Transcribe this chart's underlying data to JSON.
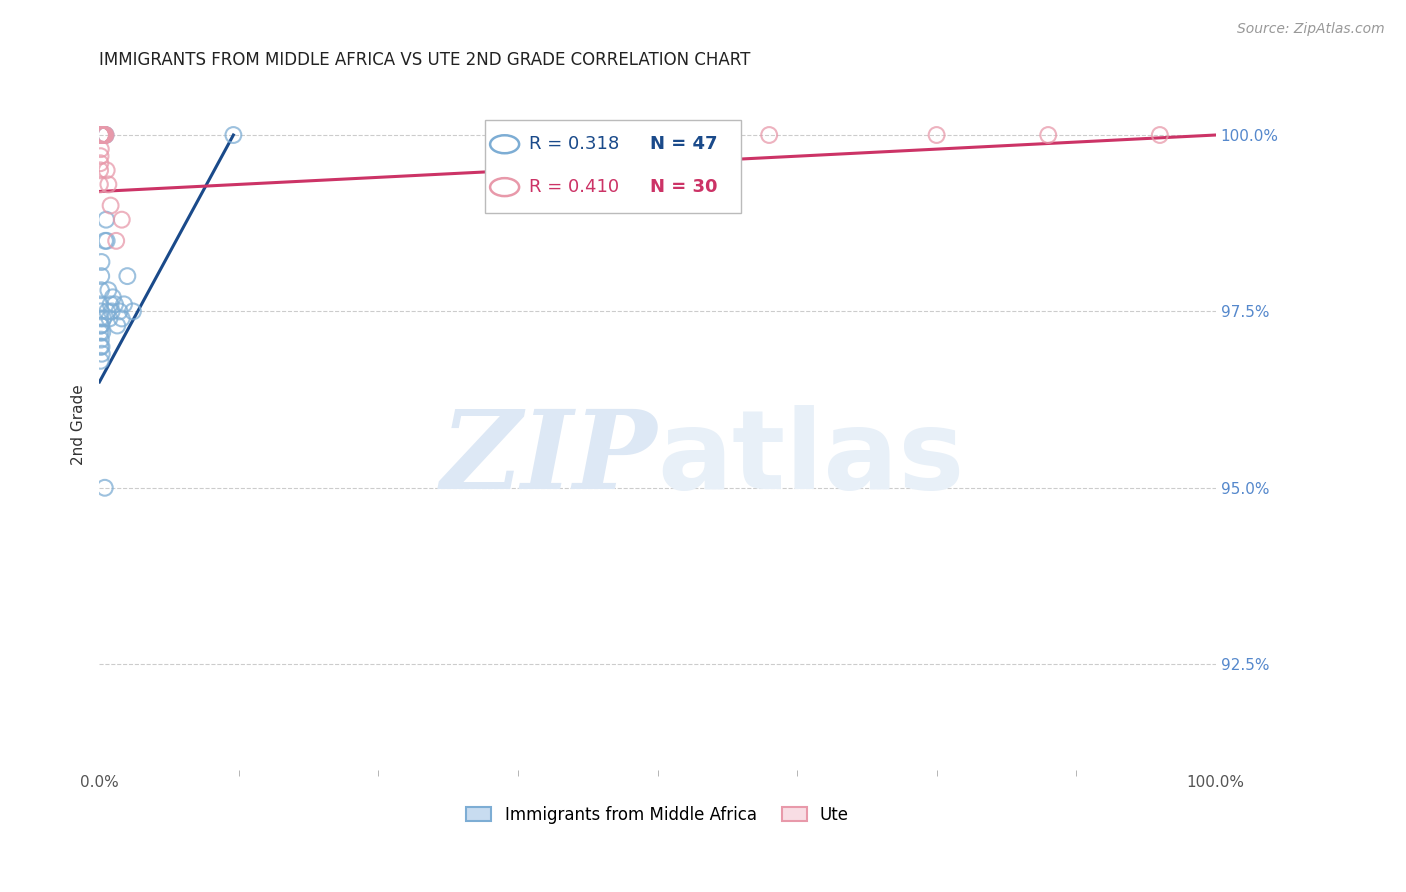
{
  "title": "IMMIGRANTS FROM MIDDLE AFRICA VS UTE 2ND GRADE CORRELATION CHART",
  "source": "Source: ZipAtlas.com",
  "ylabel": "2nd Grade",
  "ylabel_right_ticks": [
    92.5,
    95.0,
    97.5,
    100.0
  ],
  "ylabel_right_labels": [
    "92.5%",
    "95.0%",
    "97.5%",
    "100.0%"
  ],
  "xmin": 0.0,
  "xmax": 100.0,
  "ymin": 91.0,
  "ymax": 100.8,
  "blue_R": 0.318,
  "blue_N": 47,
  "pink_R": 0.41,
  "pink_N": 30,
  "blue_color": "#7dadd4",
  "pink_color": "#e899aa",
  "trendline_blue": "#1a4a8a",
  "trendline_pink": "#cc3366",
  "legend_label_blue": "Immigrants from Middle Africa",
  "legend_label_pink": "Ute",
  "blue_x": [
    0.05,
    0.08,
    0.1,
    0.12,
    0.14,
    0.16,
    0.18,
    0.2,
    0.22,
    0.24,
    0.26,
    0.28,
    0.3,
    0.32,
    0.35,
    0.38,
    0.4,
    0.43,
    0.45,
    0.5,
    0.55,
    0.6,
    0.65,
    0.7,
    0.8,
    0.9,
    1.0,
    1.1,
    1.2,
    1.4,
    1.6,
    1.8,
    2.0,
    2.2,
    2.5,
    3.0,
    0.06,
    0.09,
    0.11,
    0.13,
    0.15,
    0.19,
    0.21,
    0.25,
    0.33,
    0.48,
    12.0
  ],
  "blue_y": [
    97.6,
    97.4,
    97.3,
    97.5,
    97.8,
    98.0,
    98.2,
    100.0,
    100.0,
    100.0,
    100.0,
    100.0,
    100.0,
    100.0,
    100.0,
    100.0,
    100.0,
    100.0,
    100.0,
    98.5,
    100.0,
    98.8,
    98.5,
    97.5,
    97.8,
    97.4,
    97.6,
    97.5,
    97.7,
    97.6,
    97.3,
    97.5,
    97.4,
    97.6,
    98.0,
    97.5,
    97.2,
    97.0,
    96.8,
    97.1,
    97.3,
    97.0,
    96.9,
    97.2,
    97.4,
    95.0,
    100.0
  ],
  "pink_x": [
    0.04,
    0.06,
    0.08,
    0.1,
    0.12,
    0.14,
    0.16,
    0.18,
    0.2,
    0.24,
    0.28,
    0.3,
    0.34,
    0.38,
    0.42,
    0.48,
    0.55,
    0.65,
    0.8,
    1.0,
    1.5,
    2.0,
    40.0,
    60.0,
    75.0,
    85.0,
    95.0,
    0.22,
    0.26,
    0.44
  ],
  "pink_y": [
    99.3,
    99.5,
    99.6,
    99.7,
    99.8,
    100.0,
    100.0,
    100.0,
    100.0,
    100.0,
    100.0,
    100.0,
    100.0,
    100.0,
    100.0,
    100.0,
    100.0,
    99.5,
    99.3,
    99.0,
    98.5,
    98.8,
    100.0,
    100.0,
    100.0,
    100.0,
    100.0,
    100.0,
    100.0,
    100.0
  ],
  "blue_trend_x0": 0.0,
  "blue_trend_y0": 96.5,
  "blue_trend_x1": 12.0,
  "blue_trend_y1": 100.0,
  "pink_trend_x0": 0.0,
  "pink_trend_y0": 99.2,
  "pink_trend_x1": 100.0,
  "pink_trend_y1": 100.0,
  "watermark_zip": "ZIP",
  "watermark_atlas": "atlas",
  "watermark_color": "#dde8f5",
  "background_color": "#ffffff",
  "grid_color": "#cccccc"
}
